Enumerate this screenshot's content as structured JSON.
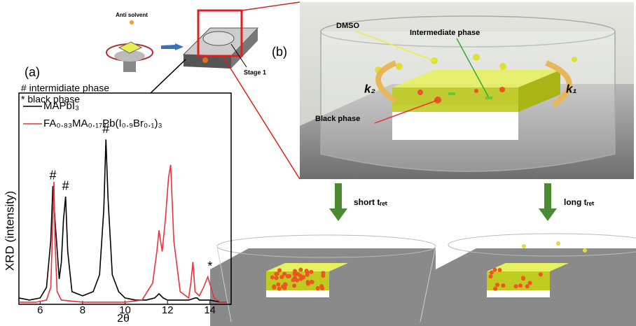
{
  "chart_data": {
    "type": "line",
    "xlabel": "2θ",
    "ylabel": "XRD (intensity)",
    "xlim": [
      5,
      15
    ],
    "ylim": [
      0,
      100
    ],
    "xticks": [
      6,
      8,
      10,
      12,
      14
    ],
    "series": [
      {
        "name": "MAPbI₃",
        "color": "#000000",
        "x": [
          5.0,
          5.5,
          6.0,
          6.3,
          6.5,
          6.6,
          6.7,
          6.9,
          7.0,
          7.1,
          7.2,
          7.3,
          7.5,
          8.0,
          8.5,
          8.8,
          9.0,
          9.1,
          9.2,
          9.4,
          9.7,
          10.0,
          10.5,
          11.0,
          11.4,
          11.6,
          11.8,
          12.0,
          12.5,
          13.0,
          13.3,
          13.4,
          13.5,
          14.0,
          14.5,
          14.8
        ],
        "values": [
          3,
          2,
          3,
          8,
          30,
          56,
          40,
          12,
          20,
          40,
          51,
          25,
          6,
          4,
          6,
          14,
          45,
          78,
          50,
          14,
          6,
          3,
          2,
          2,
          3,
          5,
          3,
          2,
          2,
          2,
          3,
          3,
          2,
          2,
          1,
          1
        ]
      },
      {
        "name": "FA₀.₈₃MA₀.₁₇Pb(I₀.₉Br₀.₁)₃",
        "color": "#e8323c",
        "x": [
          5.0,
          5.8,
          6.3,
          6.5,
          6.6,
          6.65,
          6.7,
          6.8,
          7.0,
          8.0,
          9.0,
          10.0,
          10.8,
          11.3,
          11.5,
          11.6,
          11.75,
          11.9,
          12.05,
          12.15,
          12.3,
          12.6,
          13.0,
          13.1,
          13.2,
          13.3,
          13.5,
          13.7,
          13.9,
          14.05,
          14.2,
          14.5,
          14.8
        ],
        "values": [
          1,
          1,
          2,
          8,
          40,
          58,
          30,
          6,
          2,
          1,
          1,
          1,
          2,
          10,
          25,
          35,
          25,
          40,
          60,
          66,
          30,
          6,
          3,
          10,
          20,
          6,
          4,
          8,
          13,
          8,
          3,
          1,
          1
        ]
      }
    ],
    "annotations": [
      {
        "text": "#",
        "x": 6.6,
        "y": 56
      },
      {
        "text": "#",
        "x": 7.2,
        "y": 51
      },
      {
        "text": "#",
        "x": 9.1,
        "y": 78
      },
      {
        "text": "*",
        "x": 14.0,
        "y": 13
      }
    ]
  },
  "diagram": {
    "panel_a": "(a)",
    "panel_b": "(b)",
    "notes": [
      "# intermidiate phase",
      "* black phase"
    ],
    "anti_solvent": "Anti solvent",
    "stage": "Stage 1",
    "dmso": "DMSO",
    "intermediate": "Intermediate phase",
    "black": "Black phase",
    "k2": "k₂",
    "k1": "k₁",
    "short": "short tᵣₑₜ",
    "long": "long tᵣₑₜ"
  }
}
